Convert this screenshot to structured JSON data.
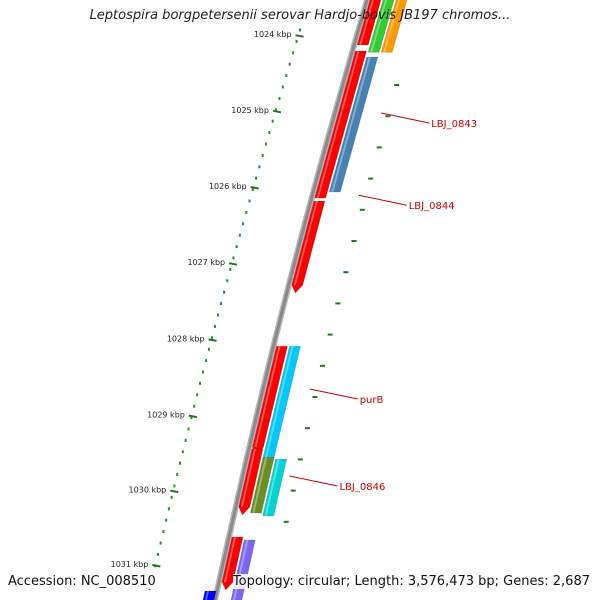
{
  "map": {
    "title": "Leptospira borgpetersenii serovar Hardjo-bovis JB197 chromos...",
    "colors": {
      "backbone": "#8a8a8a",
      "tick": "#1a7a1a",
      "dots": "#2e8b2e",
      "forward_gene": "#ff0000",
      "label_line": "#cc0000"
    },
    "ticks": [
      {
        "label": "1024 kbp",
        "t": 0.052
      },
      {
        "label": "1025 kbp",
        "t": 0.178
      },
      {
        "label": "1026 kbp",
        "t": 0.305
      },
      {
        "label": "1027 kbp",
        "t": 0.432
      },
      {
        "label": "1028 kbp",
        "t": 0.559
      },
      {
        "label": "1029 kbp",
        "t": 0.686
      },
      {
        "label": "1030 kbp",
        "t": 0.811
      },
      {
        "label": "1031 kbp",
        "t": 0.935
      }
    ],
    "genes": [
      {
        "track": 1,
        "t0": -0.02,
        "t1": 0.075,
        "color": "#ff0000",
        "arrow": false
      },
      {
        "track": 2,
        "t0": -0.02,
        "t1": 0.087,
        "color": "#33cc33",
        "arrow": false
      },
      {
        "track": 3,
        "t0": -0.02,
        "t1": 0.087,
        "color": "#ff9900",
        "arrow": false
      },
      {
        "track": 1,
        "t0": 0.085,
        "t1": 0.33,
        "color": "#ff0000",
        "arrow": false
      },
      {
        "track": 2,
        "t0": 0.095,
        "t1": 0.32,
        "color": "#4682b4",
        "arrow": false
      },
      {
        "track": 1,
        "t0": 0.335,
        "t1": 0.475,
        "color": "#ff0000",
        "arrow": true
      },
      {
        "track": 1,
        "t0": 0.577,
        "t1": 0.745,
        "color": "#ff0000",
        "arrow": true
      },
      {
        "track": 2,
        "t0": 0.577,
        "t1": 0.765,
        "color": "#00c8ff",
        "arrow": false
      },
      {
        "track": 1,
        "t0": 0.748,
        "t1": 0.845,
        "color": "#ff0000",
        "arrow": true
      },
      {
        "track": 2,
        "t0": 0.762,
        "t1": 0.855,
        "color": "#6b8e23",
        "arrow": false
      },
      {
        "track": 3,
        "t0": 0.765,
        "t1": 0.86,
        "color": "#00d4d4",
        "arrow": false
      },
      {
        "track": 1,
        "t0": 0.895,
        "t1": 0.97,
        "color": "#ff0000",
        "arrow": true
      },
      {
        "track": 2,
        "t0": 0.9,
        "t1": 1.02,
        "color": "#7b68ee",
        "arrow": false
      },
      {
        "track": 0,
        "t0": 0.985,
        "t1": 1.03,
        "color": "#0000ff",
        "arrow": false
      }
    ],
    "labels": [
      {
        "name": "LBJ_0843",
        "t": 0.205
      },
      {
        "name": "LBJ_0844",
        "t": 0.342
      },
      {
        "name": "purB",
        "t": 0.665
      },
      {
        "name": "LBJ_0846",
        "t": 0.81
      }
    ]
  },
  "footer": {
    "accession": "Accession: NC_008510",
    "topology": "Topology: circular; Length: 3,576,473 bp; Genes: 2,687"
  }
}
